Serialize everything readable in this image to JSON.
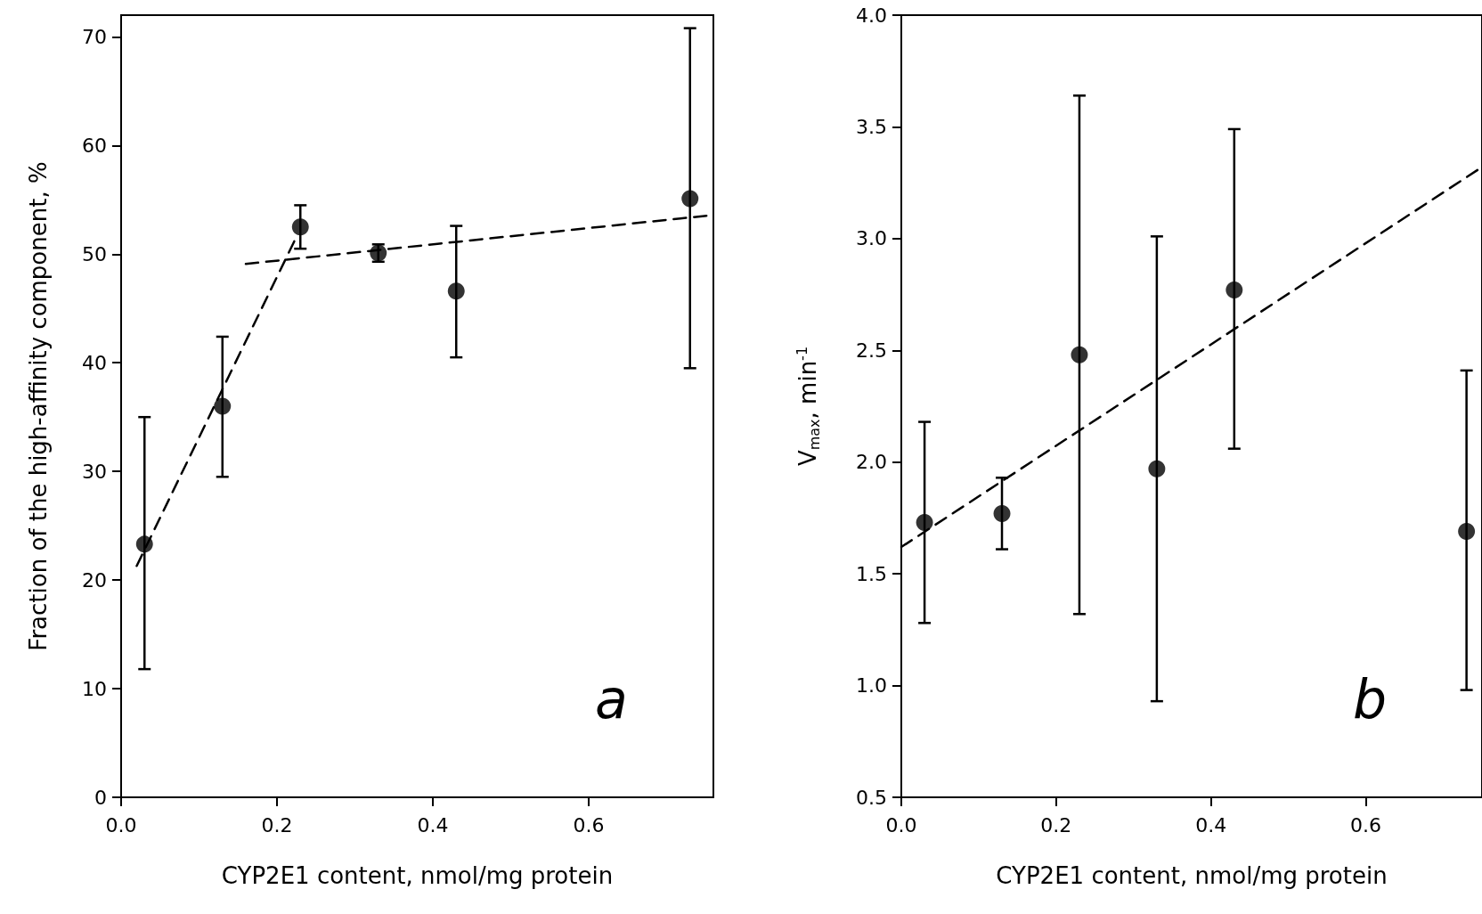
{
  "chart_data": [
    {
      "type": "scatter",
      "xlabel": "CYP2E1 content, nmol/mg protein",
      "ylabel": "Fraction of the high-affinity component, %",
      "annotations": [
        "a"
      ],
      "xlim": [
        0,
        0.76
      ],
      "xticks": [
        {
          "value": 0,
          "label": "0.0"
        },
        0.2,
        0.4,
        0.6
      ],
      "ylim": [
        0,
        72
      ],
      "yticks": [
        0,
        10,
        20,
        30,
        40,
        50,
        60,
        70
      ],
      "grid": false,
      "marker": "circle",
      "series": [
        {
          "color": "#000000",
          "x": [
            0.03,
            0.13,
            0.23,
            0.33,
            0.43,
            0.73
          ],
          "values": [
            23.3,
            36,
            52.5,
            50.1,
            46.6,
            55.1
          ],
          "errors": [
            [
              11.8,
              35
            ],
            [
              29.5,
              42.4
            ],
            [
              50.5,
              54.5
            ],
            [
              49.3,
              50.9
            ],
            [
              40.5,
              52.6
            ],
            [
              39.5,
              70.8
            ]
          ]
        },
        {
          "type": "line",
          "color": "#000000",
          "marker": "none",
          "line_style": "dashed",
          "x": [
            0.02,
            0.225
          ],
          "values": [
            21.3,
            51.6
          ]
        },
        {
          "type": "line",
          "color": "#000000",
          "marker": "none",
          "line_style": "dashed",
          "x": [
            0.16,
            0.76
          ],
          "values": [
            49.1,
            53.6
          ]
        }
      ]
    },
    {
      "type": "scatter",
      "xlabel": "CYP2E1 content, nmol/mg protein",
      "ylabel": "V$_{max}$, min$^{-1}$",
      "annotations": [
        "b"
      ],
      "xlim": [
        0,
        0.75
      ],
      "xticks": [
        {
          "value": 0,
          "label": "0.0"
        },
        0.2,
        0.4,
        0.6
      ],
      "ylim": [
        0.5,
        4
      ],
      "yticks": [
        0.5,
        {
          "value": 1,
          "label": "1.0"
        },
        1.5,
        {
          "value": 2,
          "label": "2.0"
        },
        2.5,
        {
          "value": 3,
          "label": "3.0"
        },
        3.5,
        {
          "value": 4,
          "label": "4.0"
        }
      ],
      "grid": false,
      "marker": "circle",
      "series": [
        {
          "color": "#000000",
          "x": [
            0.03,
            0.13,
            0.23,
            0.33,
            0.43,
            0.73
          ],
          "values": [
            1.73,
            1.77,
            2.48,
            1.97,
            2.77,
            1.69
          ],
          "errors": [
            [
              1.28,
              2.18
            ],
            [
              1.61,
              1.93
            ],
            [
              1.32,
              3.64
            ],
            [
              0.93,
              3.01
            ],
            [
              2.06,
              3.49
            ],
            [
              0.98,
              2.41
            ]
          ]
        },
        {
          "type": "line",
          "color": "#000000",
          "marker": "none",
          "line_style": "dashed",
          "x": [
            0,
            0.75
          ],
          "values": [
            1.62,
            3.32
          ]
        }
      ]
    }
  ]
}
